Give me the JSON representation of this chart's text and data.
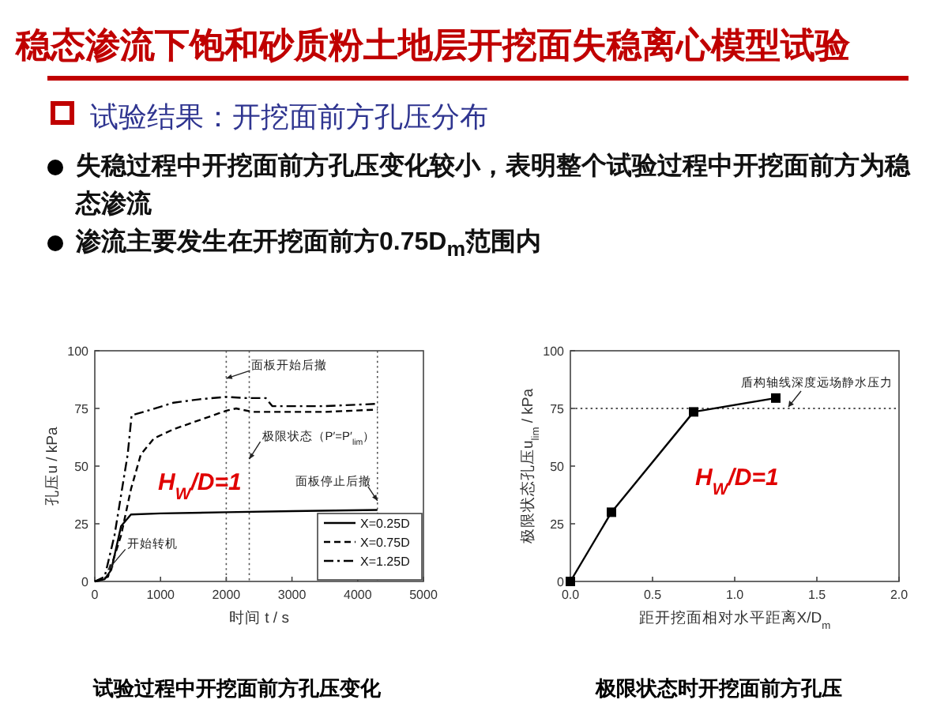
{
  "chart_data": [
    {
      "type": "other",
      "title": "稳态渗流下饱和砂质粉土地层开挖面失稳离心模型试验",
      "subtitle": "试验结果：开挖面前方孔压分布",
      "annotations": [
        "失稳过程中开挖面前方孔压变化较小，表明整个试验过程中开挖面前方为稳态渗流",
        "渗流主要发生在开挖面前方0.75D$_{m}$范围内"
      ]
    },
    {
      "type": "line",
      "xlabel": "时间 t / s",
      "ylabel": "孔压u / kPa",
      "xlim": [
        0,
        5000
      ],
      "xticks": [
        0,
        1000,
        2000,
        3000,
        4000,
        5000
      ],
      "ylim": [
        0,
        100
      ],
      "yticks": [
        0,
        25,
        50,
        75,
        100
      ],
      "grid": false,
      "legend": "bottom right",
      "series": [
        {
          "name": "X=0.25D",
          "color": "#000000",
          "line_style": "solid",
          "x": [
            0,
            150,
            250,
            400,
            550,
            1000,
            2000,
            3000,
            4300
          ],
          "values": [
            0,
            1,
            5,
            24,
            29,
            29.5,
            30,
            30.5,
            31
          ]
        },
        {
          "name": "X=0.75D",
          "color": "#000000",
          "line_style": "dashed",
          "x": [
            0,
            200,
            400,
            550,
            700,
            900,
            1200,
            1600,
            2000,
            2150,
            2400,
            3000,
            3500,
            4300
          ],
          "values": [
            0,
            2,
            20,
            40,
            55,
            62,
            66,
            70,
            74,
            75,
            73.5,
            73.5,
            73.5,
            74.5
          ]
        },
        {
          "name": "X=1.25D",
          "color": "#000000",
          "line_style": "dashdot",
          "x": [
            0,
            150,
            300,
            500,
            560,
            800,
            1200,
            1600,
            2000,
            2300,
            2600,
            2700,
            3500,
            4300
          ],
          "values": [
            0,
            2,
            20,
            55,
            72,
            74,
            77.5,
            79,
            80,
            79.5,
            79.5,
            76,
            76,
            77
          ]
        }
      ],
      "ref_lines": [
        {
          "axis": "x",
          "value": 2000,
          "line_style": "dotted"
        },
        {
          "axis": "x",
          "value": 2350,
          "line_style": "dotted"
        },
        {
          "axis": "x",
          "value": 4300,
          "line_style": "dotted"
        }
      ],
      "annotations": [
        {
          "text": "面板开始后撤",
          "x": 2000,
          "y": 88
        },
        {
          "text": "极限状态（P′=P′$_{lim}$）",
          "x": 2350,
          "y": 53
        },
        {
          "text": "面板停止后撤",
          "x": 4300,
          "y": 35
        },
        {
          "text": "开始转机",
          "x": 200,
          "y": 5
        },
        "H$_{W}$/D=1",
        "试验过程中开挖面前方孔压变化"
      ]
    },
    {
      "type": "line",
      "xlabel": "距开挖面相对水平距离X/D$_{m}$",
      "ylabel": "极限状态孔压u$_{lim}$ / kPa",
      "xlim": [
        0,
        2
      ],
      "xticks": [
        {
          "value": 0,
          "label": "0.0"
        },
        {
          "value": 0.5,
          "label": "0.5"
        },
        {
          "value": 1,
          "label": "1.0"
        },
        {
          "value": 1.5,
          "label": "1.5"
        },
        {
          "value": 2,
          "label": "2.0"
        }
      ],
      "ylim": [
        0,
        100
      ],
      "yticks": [
        0,
        25,
        50,
        75,
        100
      ],
      "grid": false,
      "marker": "square",
      "series": [
        {
          "color": "#000000",
          "line_style": "solid",
          "x": [
            0,
            0.25,
            0.75,
            1.25
          ],
          "values": [
            0,
            30,
            73.5,
            79.5
          ]
        }
      ],
      "ref_lines": [
        {
          "axis": "y",
          "value": 75,
          "label": "盾构轴线深度远场静水压力",
          "line_style": "dotted"
        }
      ],
      "annotations": [
        "H$_{W}$/D=1",
        "极限状态时开挖面前方孔压"
      ]
    }
  ]
}
